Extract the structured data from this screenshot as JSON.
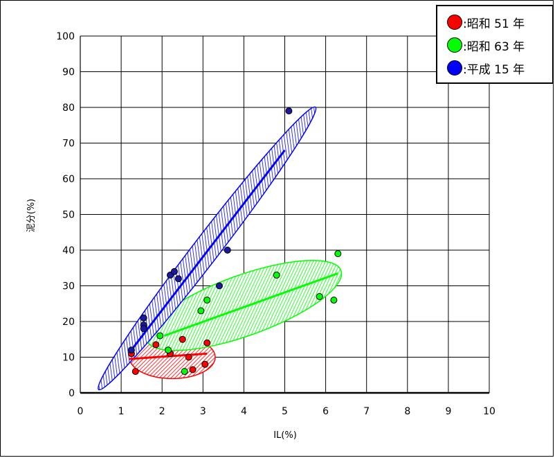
{
  "chart_data": {
    "type": "scatter",
    "xlabel": "IL(%)",
    "ylabel": "泥分(%)",
    "xlim": [
      0,
      10
    ],
    "ylim": [
      0,
      100
    ],
    "xticks": [
      "0",
      "1",
      "2",
      "3",
      "4",
      "5",
      "6",
      "7",
      "8",
      "9",
      "10"
    ],
    "yticks": [
      "0",
      "10",
      "20",
      "30",
      "40",
      "50",
      "60",
      "70",
      "80",
      "90",
      "100"
    ],
    "grid": true,
    "legend_position": "top-right",
    "series": [
      {
        "name": ":昭和 51 年",
        "color": "#ff0000",
        "points": [
          [
            1.25,
            11
          ],
          [
            1.35,
            6
          ],
          [
            1.85,
            13.5
          ],
          [
            2.2,
            11
          ],
          [
            2.5,
            15
          ],
          [
            2.65,
            10
          ],
          [
            2.75,
            6.5
          ],
          [
            3.05,
            8
          ],
          [
            3.1,
            14
          ]
        ],
        "trend": [
          [
            1.2,
            9.5
          ],
          [
            3.1,
            11
          ]
        ],
        "ellipse": {
          "center": [
            2.25,
            10
          ],
          "semi_axis_x": 1.05,
          "semi_axis_y": 6,
          "rotation_deg": 0
        }
      },
      {
        "name": ":昭和 63 年",
        "color": "#00ff00",
        "points": [
          [
            1.95,
            16
          ],
          [
            2.15,
            12
          ],
          [
            2.55,
            6
          ],
          [
            2.95,
            23
          ],
          [
            3.1,
            26
          ],
          [
            4.8,
            33
          ],
          [
            5.85,
            27
          ],
          [
            6.2,
            26
          ],
          [
            6.3,
            39
          ]
        ],
        "trend": [
          [
            2.05,
            16
          ],
          [
            6.3,
            33.5
          ]
        ],
        "ellipse": {
          "center": [
            4.0,
            24.5
          ],
          "length_along_axis": 4.75,
          "width": 18
        }
      },
      {
        "name": ":平成 15 年",
        "color": "#0000ff",
        "points": [
          [
            1.25,
            12
          ],
          [
            1.55,
            21
          ],
          [
            1.55,
            19
          ],
          [
            1.55,
            18
          ],
          [
            2.2,
            33
          ],
          [
            2.3,
            34
          ],
          [
            2.4,
            32
          ],
          [
            3.4,
            30
          ],
          [
            3.6,
            40
          ],
          [
            5.1,
            79
          ]
        ],
        "trend": [
          [
            1.25,
            12
          ],
          [
            5.0,
            68
          ]
        ],
        "ellipse": {
          "center": [
            3.1,
            40.5
          ],
          "length_along_axis": 5.3,
          "width": 12
        }
      }
    ]
  }
}
